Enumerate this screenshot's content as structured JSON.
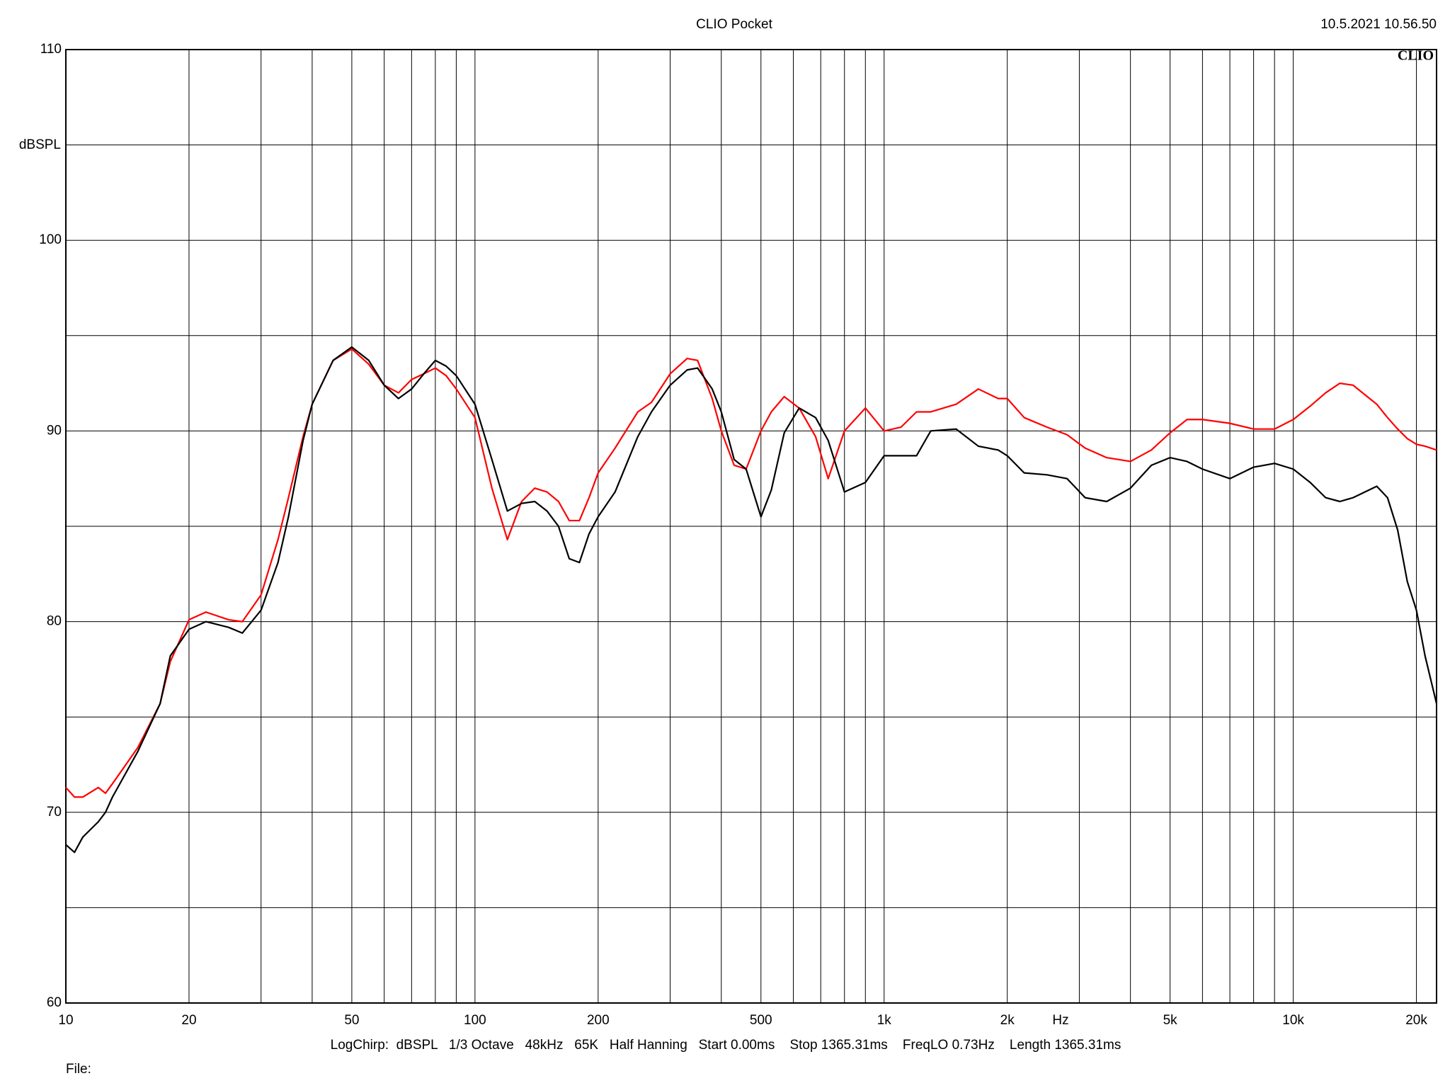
{
  "chart_data": {
    "type": "line",
    "title": "CLIO Pocket",
    "timestamp": "10.5.2021 10.56.50",
    "logo": "CLIO",
    "y_label": "dBSPL",
    "x_label": "Hz",
    "footer": "LogChirp:  dBSPL   1/3 Octave   48kHz   65K   Half Hanning   Start 0.00ms    Stop 1365.31ms    FreqLO 0.73Hz    Length 1365.31ms",
    "file_label": "File:",
    "x_log": true,
    "grid": true,
    "xlim": [
      10,
      22400
    ],
    "ylim": [
      60,
      110
    ],
    "xticks": [
      10,
      20,
      50,
      100,
      200,
      500,
      {
        "value": 1000,
        "label": "1k"
      },
      {
        "value": 2000,
        "label": "2k"
      },
      {
        "value": 5000,
        "label": "5k"
      },
      {
        "value": 10000,
        "label": "10k"
      },
      {
        "value": 20000,
        "label": "20k"
      }
    ],
    "x_minor_ticks": [
      30,
      40,
      60,
      70,
      80,
      90,
      300,
      400,
      600,
      700,
      800,
      900,
      3000,
      4000,
      6000,
      7000,
      8000,
      9000
    ],
    "yticks": [
      60,
      70,
      80,
      90,
      100,
      110
    ],
    "y_minor_ticks": [
      65,
      75,
      85,
      95,
      105
    ],
    "x": [
      10,
      10.5,
      11,
      12,
      12.5,
      13,
      15,
      17,
      18,
      20,
      22,
      25,
      27,
      30,
      33,
      35,
      38,
      40,
      45,
      50,
      55,
      60,
      65,
      70,
      75,
      80,
      85,
      90,
      100,
      110,
      120,
      130,
      140,
      150,
      160,
      170,
      180,
      190,
      200,
      220,
      250,
      270,
      300,
      330,
      350,
      380,
      400,
      430,
      460,
      500,
      530,
      570,
      620,
      680,
      730,
      800,
      900,
      1000,
      1100,
      1200,
      1300,
      1500,
      1700,
      1900,
      2000,
      2200,
      2500,
      2800,
      3100,
      3500,
      4000,
      4500,
      5000,
      5500,
      6000,
      7000,
      8000,
      9000,
      10000,
      11000,
      12000,
      13000,
      14000,
      16000,
      17000,
      18000,
      19000,
      20000,
      21000,
      22400
    ],
    "series": [
      {
        "color": "#000000",
        "values": [
          68.3,
          67.9,
          68.7,
          69.5,
          70.0,
          70.8,
          73.2,
          75.7,
          78.2,
          79.6,
          80.0,
          79.7,
          79.4,
          80.6,
          83.1,
          85.5,
          89.5,
          91.4,
          93.7,
          94.4,
          93.7,
          92.4,
          91.7,
          92.2,
          93.0,
          93.7,
          93.4,
          92.9,
          91.4,
          88.5,
          85.8,
          86.2,
          86.3,
          85.8,
          85.0,
          83.3,
          83.1,
          84.6,
          85.5,
          86.8,
          89.7,
          91.0,
          92.4,
          93.2,
          93.3,
          92.2,
          91.0,
          88.5,
          88.0,
          85.5,
          86.9,
          89.9,
          91.2,
          90.7,
          89.5,
          86.8,
          87.3,
          88.7,
          88.7,
          88.7,
          90.0,
          90.1,
          89.2,
          89.0,
          88.7,
          87.8,
          87.7,
          87.5,
          86.5,
          86.3,
          87.0,
          88.2,
          88.6,
          88.4,
          88.0,
          87.5,
          88.1,
          88.3,
          88.0,
          87.3,
          86.5,
          86.3,
          86.5,
          87.1,
          86.5,
          84.8,
          82.1,
          80.6,
          78.2,
          75.7
        ]
      },
      {
        "color": "#ff0000",
        "values": [
          71.3,
          70.8,
          70.8,
          71.3,
          71.0,
          71.5,
          73.4,
          75.7,
          77.9,
          80.1,
          80.5,
          80.1,
          80.0,
          81.4,
          84.3,
          86.5,
          89.7,
          91.4,
          93.7,
          94.3,
          93.5,
          92.4,
          92.0,
          92.7,
          93.0,
          93.3,
          92.9,
          92.2,
          90.7,
          87.0,
          84.3,
          86.3,
          87.0,
          86.8,
          86.3,
          85.3,
          85.3,
          86.5,
          87.8,
          89.1,
          91.0,
          91.5,
          93.0,
          93.8,
          93.7,
          91.7,
          90.0,
          88.2,
          88.0,
          90.0,
          91.0,
          91.8,
          91.2,
          89.7,
          87.5,
          90.0,
          91.2,
          90.0,
          90.2,
          91.0,
          91.0,
          91.4,
          92.2,
          91.7,
          91.7,
          90.7,
          90.2,
          89.8,
          89.1,
          88.6,
          88.4,
          89.0,
          89.9,
          90.6,
          90.6,
          90.4,
          90.1,
          90.1,
          90.6,
          91.3,
          92.0,
          92.5,
          92.4,
          91.4,
          90.7,
          90.1,
          89.6,
          89.3,
          89.2,
          89.0
        ]
      }
    ]
  }
}
